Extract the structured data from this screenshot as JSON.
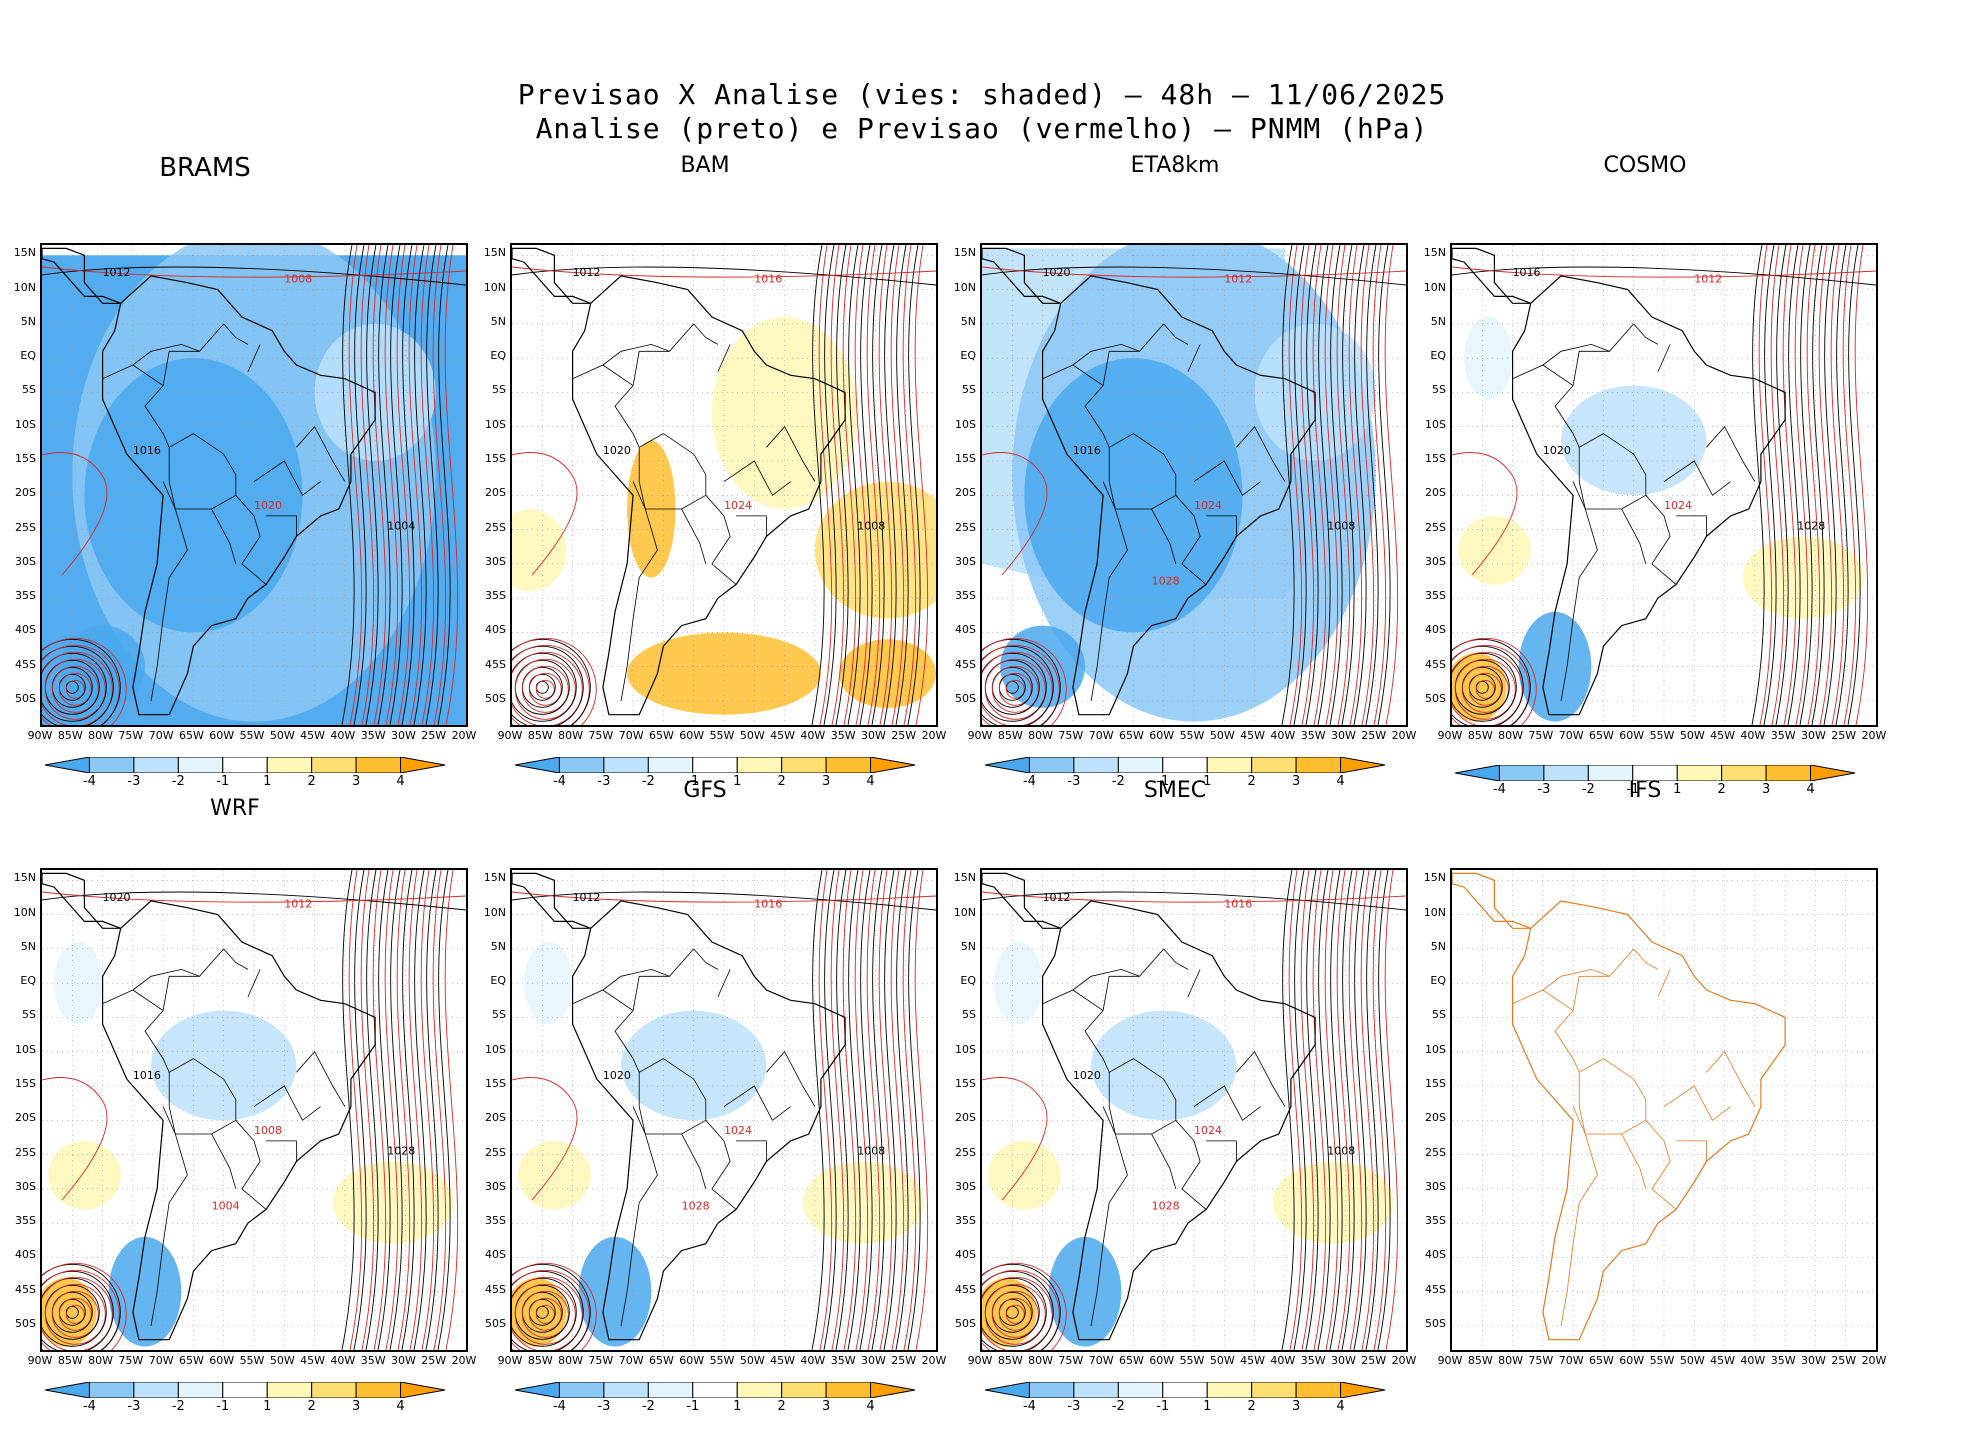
{
  "header": {
    "line1": "Previsao X Analise (vies: shaded) — 48h — 11/06/2025",
    "line2": "Analise (preto) e Previsao (vermelho) — PNMM (hPa)"
  },
  "lat_labels": [
    "15N",
    "10N",
    "5N",
    "EQ",
    "5S",
    "10S",
    "15S",
    "20S",
    "25S",
    "30S",
    "35S",
    "40S",
    "45S",
    "50S"
  ],
  "lon_labels": [
    "90W",
    "85W",
    "80W",
    "75W",
    "70W",
    "65W",
    "60W",
    "55W",
    "50W",
    "45W",
    "40W",
    "35W",
    "30W",
    "25W",
    "20W"
  ],
  "colorbar": {
    "labels": [
      "-4",
      "-3",
      "-2",
      "-1",
      "1",
      "2",
      "3",
      "4"
    ],
    "colors": [
      "#4aa8ee",
      "#8cc8f6",
      "#bde2fb",
      "#e4f4fd",
      "#ffffff",
      "#fff7b6",
      "#ffdf72",
      "#ffbf30",
      "#ffa000"
    ]
  },
  "colors": {
    "analysis": "#000000",
    "forecast": "#d42a2a",
    "coast_ifs": "#e07a20",
    "grid": "#999999"
  },
  "panels": [
    {
      "name": "BRAMS",
      "bias": "negative",
      "labels": [
        "1012",
        "1008",
        "1016",
        "1020",
        "1004"
      ]
    },
    {
      "name": "BAM",
      "bias": "positive",
      "labels": [
        "1012",
        "1016",
        "1020",
        "1024",
        "1008"
      ]
    },
    {
      "name": "ETA8km",
      "bias": "negative",
      "labels": [
        "1020",
        "1012",
        "1016",
        "1024",
        "1008",
        "1028"
      ]
    },
    {
      "name": "COSMO",
      "bias": "mixed",
      "labels": [
        "1016",
        "1012",
        "1020",
        "1024",
        "1028"
      ]
    },
    {
      "name": "WRF",
      "bias": "mixed",
      "labels": [
        "1020",
        "1012",
        "1016",
        "1008",
        "1028",
        "1004"
      ]
    },
    {
      "name": "GFS",
      "bias": "mixed",
      "labels": [
        "1012",
        "1016",
        "1020",
        "1024",
        "1008",
        "1028"
      ]
    },
    {
      "name": "SMEC",
      "bias": "mixed",
      "labels": [
        "1012",
        "1016",
        "1020",
        "1024",
        "1008",
        "1028"
      ]
    },
    {
      "name": "IFS",
      "bias": "none",
      "labels": []
    }
  ]
}
